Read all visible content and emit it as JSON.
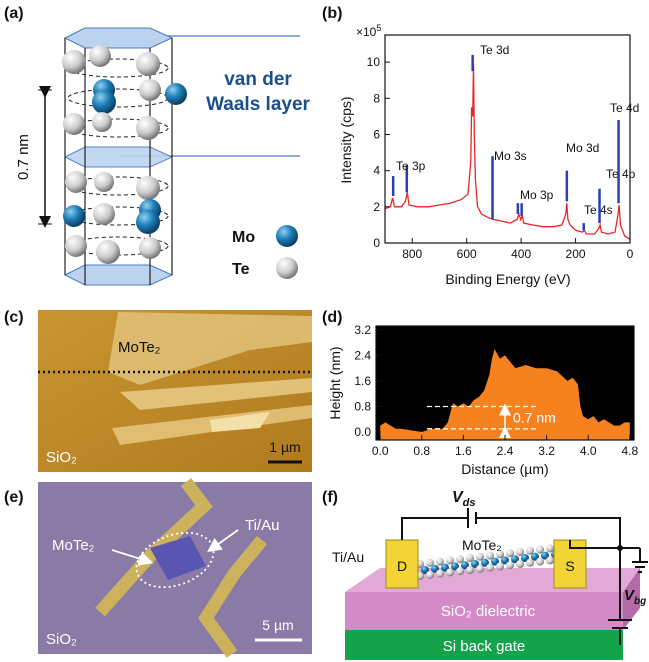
{
  "panel_labels": [
    "(a)",
    "(b)",
    "(c)",
    "(d)",
    "(e)",
    "(f)"
  ],
  "panel_a": {
    "layer_label": [
      "van der",
      "Waals layer"
    ],
    "spacing": "0.7 nm",
    "legend": [
      "Mo",
      "Te"
    ]
  },
  "panel_c": {
    "flake": "MoTe₂",
    "substrate": "SiO₂",
    "scale_bar": "1 µm"
  },
  "panel_e": {
    "flake": "MoTe₂",
    "contact": "Ti/Au",
    "substrate": "SiO₂",
    "scale_bar": "5 µm"
  },
  "panel_f": {
    "source_voltage": {
      "symbol": "V",
      "subscript": "ds"
    },
    "contact": "Ti/Au",
    "channel": "MoTe₂",
    "drain": "D",
    "source": "S",
    "dielectric": "SiO₂ dielectric",
    "gate": "Si back gate",
    "gate_voltage": {
      "symbol": "V",
      "subscript": "bg"
    }
  },
  "chart_data": [
    {
      "type": "line",
      "x_label": "Binding Energy (eV)",
      "y_label": "Intensity (cps)",
      "multiplier": {
        "base": "×10",
        "exponent": "5"
      },
      "color": "#e8262a",
      "marker_color": "#2b3fb0",
      "x": [
        900,
        880,
        872,
        865,
        840,
        825,
        818,
        812,
        780,
        740,
        700,
        660,
        620,
        595,
        585,
        582,
        578,
        575,
        572,
        568,
        560,
        545,
        520,
        500,
        470,
        440,
        415,
        408,
        402,
        396,
        390,
        360,
        320,
        280,
        250,
        236,
        232,
        228,
        220,
        200,
        175,
        168,
        160,
        130,
        115,
        110,
        105,
        80,
        55,
        45,
        40,
        35,
        20,
        0
      ],
      "values": [
        1.9,
        2.0,
        2.5,
        2.0,
        2.0,
        2.3,
        2.8,
        2.1,
        2.0,
        2.0,
        2.1,
        2.2,
        2.4,
        2.7,
        4.5,
        7.5,
        7.0,
        9.9,
        6.0,
        3.5,
        2.0,
        1.6,
        1.4,
        1.3,
        1.2,
        1.1,
        1.3,
        1.6,
        1.3,
        1.5,
        1.1,
        1.0,
        0.9,
        0.9,
        1.0,
        1.6,
        2.2,
        1.3,
        1.0,
        0.7,
        0.6,
        0.7,
        0.5,
        0.5,
        0.8,
        1.0,
        0.6,
        0.5,
        0.6,
        1.5,
        2.1,
        1.0,
        0.4,
        0.2
      ],
      "peaks": [
        {
          "name": "Te 3p",
          "x": [
            870,
            820
          ],
          "low": [
            2.6,
            2.8
          ],
          "high": [
            3.7,
            4.3
          ]
        },
        {
          "name": "Te 3d",
          "x": [
            578
          ],
          "low": [
            9.5
          ],
          "high": [
            10.4
          ]
        },
        {
          "name": "Mo 3s",
          "x": [
            505
          ],
          "low": [
            1.3
          ],
          "high": [
            4.8
          ]
        },
        {
          "name": "Mo 3p",
          "x": [
            412,
            398
          ],
          "low": [
            1.6,
            1.5
          ],
          "high": [
            2.2,
            2.2
          ]
        },
        {
          "name": "Mo 3d",
          "x": [
            232
          ],
          "low": [
            2.3
          ],
          "high": [
            4.0
          ]
        },
        {
          "name": "Te 4s",
          "x": [
            170
          ],
          "low": [
            0.7
          ],
          "high": [
            1.1
          ]
        },
        {
          "name": "Te 4p",
          "x": [
            112
          ],
          "low": [
            1.1
          ],
          "high": [
            3.0
          ]
        },
        {
          "name": "Te 4d",
          "x": [
            42
          ],
          "low": [
            2.2
          ],
          "high": [
            6.8
          ]
        }
      ],
      "xlim": [
        900,
        0
      ],
      "ylim": [
        0,
        11.5
      ],
      "xticks": [
        800,
        600,
        400,
        200,
        0
      ],
      "yticks": [
        0,
        2,
        4,
        6,
        8,
        10
      ]
    },
    {
      "type": "area",
      "x_label": "Distance (µm)",
      "y_label": "Height (nm)",
      "annotation": "0.7 nm",
      "color": "#f5821f",
      "background": "#000000",
      "x": [
        0,
        0.1,
        0.2,
        0.3,
        0.4,
        0.6,
        0.8,
        1.0,
        1.2,
        1.3,
        1.4,
        1.5,
        1.6,
        1.7,
        1.8,
        1.9,
        2.0,
        2.1,
        2.15,
        2.2,
        2.3,
        2.4,
        2.5,
        2.6,
        2.8,
        3.0,
        3.2,
        3.4,
        3.6,
        3.7,
        3.8,
        3.85,
        3.9,
        4.0,
        4.1,
        4.2,
        4.3,
        4.4,
        4.5,
        4.6,
        4.7,
        4.8
      ],
      "values": [
        0.2,
        0.3,
        0.2,
        0.1,
        0.1,
        0.05,
        0.0,
        0.1,
        0.1,
        0.3,
        0.9,
        0.8,
        0.9,
        0.8,
        1.0,
        1.1,
        1.3,
        1.8,
        2.3,
        2.6,
        2.3,
        2.4,
        2.2,
        2.0,
        2.1,
        2.0,
        2.0,
        1.9,
        1.6,
        1.7,
        1.5,
        0.8,
        0.5,
        0.4,
        0.5,
        0.3,
        0.4,
        0.3,
        0.2,
        0.2,
        0.3,
        0.3
      ],
      "reference_lines": [
        0.1,
        0.8
      ],
      "xlim": [
        -0.08,
        4.88
      ],
      "ylim": [
        -0.25,
        3.32
      ],
      "xticks": [
        {
          "value": 0,
          "label": "0.0"
        },
        0.8,
        1.6,
        2.4,
        3.2,
        {
          "value": 4,
          "label": "4.0"
        },
        4.8
      ],
      "yticks": [
        {
          "value": 0,
          "label": "0.0"
        },
        0.8,
        1.6,
        2.4,
        3.2
      ]
    }
  ]
}
